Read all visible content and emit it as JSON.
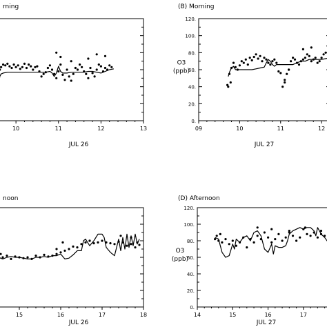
{
  "chart_data": [
    {
      "type": "scatter",
      "panel": "A",
      "title": "(A)  Morning",
      "title_visible": "rning",
      "xlabel": "JUL 26",
      "ylabel": "",
      "xlim": [
        9.3,
        13
      ],
      "ylim": [
        0,
        120
      ],
      "xticks": [
        "10",
        "11",
        "12",
        "13"
      ],
      "yticks": [],
      "series": [
        {
          "style": "dots",
          "x": [
            9.5,
            9.52,
            9.58,
            9.6,
            9.62,
            9.65,
            9.7,
            9.75,
            9.8,
            9.85,
            9.9,
            9.95,
            10.0,
            10.05,
            10.1,
            10.15,
            10.2,
            10.25,
            10.3,
            10.35,
            10.4,
            10.45,
            10.5,
            10.55,
            10.6,
            10.65,
            10.7,
            10.75,
            10.8,
            10.85,
            10.9,
            10.95,
            11.0,
            11.05,
            11.1,
            11.15,
            11.2,
            11.25,
            11.3,
            11.35,
            11.4,
            11.45,
            11.5,
            11.55,
            11.6,
            11.65,
            11.7,
            11.75,
            11.8,
            11.85,
            11.9,
            11.95,
            12.0,
            12.05,
            12.1,
            12.15,
            12.2,
            12.25,
            10.95,
            11.05,
            11.3,
            11.7,
            11.9,
            12.1
          ],
          "y": [
            31,
            30,
            45,
            55,
            60,
            63,
            66,
            65,
            67,
            64,
            62,
            66,
            63,
            65,
            61,
            63,
            67,
            62,
            66,
            64,
            60,
            63,
            64,
            58,
            52,
            55,
            57,
            62,
            65,
            60,
            55,
            50,
            58,
            66,
            54,
            48,
            60,
            52,
            47,
            55,
            62,
            60,
            66,
            63,
            58,
            55,
            50,
            62,
            56,
            52,
            60,
            66,
            64,
            58,
            62,
            60,
            65,
            63,
            80,
            75,
            70,
            73,
            78,
            76
          ]
        },
        {
          "style": "line",
          "x": [
            9.48,
            9.52,
            9.55,
            9.6,
            9.62,
            9.65,
            9.7,
            9.8,
            9.9,
            10.0,
            10.1,
            10.2,
            10.3,
            10.4,
            10.5,
            10.6,
            10.7,
            10.8,
            10.85,
            10.9,
            10.95,
            11.0,
            11.05,
            11.1,
            11.2,
            11.3,
            11.4,
            11.5,
            11.6,
            11.7,
            11.8,
            11.9,
            12.0,
            12.1,
            12.2,
            12.3
          ],
          "y": [
            34,
            40,
            38,
            44,
            52,
            55,
            56,
            57,
            57,
            57,
            57,
            57,
            57,
            57,
            57,
            57,
            57,
            58,
            56,
            52,
            56,
            64,
            58,
            56,
            56,
            57,
            57,
            57,
            57,
            58,
            58,
            57,
            56,
            58,
            60,
            61
          ]
        }
      ]
    },
    {
      "type": "scatter",
      "panel": "B",
      "title": "(B)  Morning",
      "xlabel": "JUL 27",
      "ylabel": "O3\n(ppb)",
      "ylabel_lines": [
        "O3",
        "(ppb)"
      ],
      "xlim": [
        9,
        12.2
      ],
      "ylim": [
        0,
        120
      ],
      "xticks": [
        "09",
        "10",
        "11",
        "12"
      ],
      "yticks": [
        "120.",
        "100.",
        "80.",
        "60.",
        "40.",
        "20.",
        "0."
      ],
      "series": [
        {
          "style": "dots",
          "x": [
            9.7,
            9.72,
            9.75,
            9.78,
            9.8,
            9.85,
            9.9,
            9.95,
            10.0,
            10.05,
            10.1,
            10.15,
            10.2,
            10.25,
            10.3,
            10.35,
            10.4,
            10.45,
            10.5,
            10.55,
            10.6,
            10.65,
            10.7,
            10.75,
            10.8,
            10.85,
            10.9,
            10.95,
            11.0,
            11.05,
            11.1,
            11.15,
            11.2,
            11.25,
            11.3,
            11.35,
            11.4,
            11.45,
            11.5,
            11.55,
            11.6,
            11.65,
            11.7,
            11.75,
            11.8,
            11.85,
            11.9,
            11.95,
            12.0,
            12.05,
            12.1,
            12.15,
            11.1,
            11.2,
            11.55,
            11.75
          ],
          "y": [
            42,
            40,
            55,
            45,
            62,
            68,
            63,
            60,
            65,
            70,
            68,
            72,
            66,
            74,
            71,
            75,
            78,
            73,
            76,
            70,
            74,
            72,
            68,
            66,
            70,
            72,
            68,
            58,
            56,
            40,
            45,
            55,
            60,
            70,
            74,
            72,
            68,
            66,
            70,
            72,
            74,
            78,
            76,
            70,
            72,
            74,
            68,
            70,
            74,
            78,
            80,
            88,
            48,
            60,
            84,
            86
          ]
        },
        {
          "style": "line",
          "x": [
            9.72,
            9.76,
            9.8,
            9.85,
            9.9,
            10.0,
            10.1,
            10.2,
            10.3,
            10.4,
            10.5,
            10.6,
            10.65,
            10.7,
            10.75,
            10.8,
            10.85,
            10.9,
            11.0,
            11.1,
            11.2,
            11.3,
            11.4,
            11.5,
            11.6,
            11.7,
            11.8,
            11.9,
            12.0,
            12.1,
            12.2
          ],
          "y": [
            52,
            58,
            62,
            64,
            60,
            60,
            60,
            60,
            60,
            61,
            62,
            63,
            68,
            72,
            70,
            66,
            64,
            66,
            66,
            66,
            66,
            66,
            68,
            70,
            70,
            72,
            72,
            72,
            72,
            73,
            74
          ]
        }
      ]
    },
    {
      "type": "scatter",
      "panel": "C",
      "title": "(C)  Afternoon",
      "title_visible": "noon",
      "xlabel": "JUL 26",
      "ylabel": "",
      "xlim": [
        14.2,
        18
      ],
      "ylim": [
        0,
        120
      ],
      "xticks": [
        "15",
        "16",
        "17",
        "18"
      ],
      "yticks": [],
      "series": [
        {
          "style": "dots",
          "x": [
            14.3,
            14.35,
            14.4,
            14.45,
            14.5,
            14.55,
            14.6,
            14.7,
            14.8,
            14.9,
            15.0,
            15.1,
            15.2,
            15.3,
            15.4,
            15.5,
            15.6,
            15.7,
            15.8,
            15.9,
            16.0,
            16.1,
            16.2,
            16.3,
            16.4,
            16.5,
            16.6,
            16.7,
            16.8,
            16.9,
            17.0,
            17.1,
            17.2,
            17.3,
            17.4,
            17.5,
            17.6,
            17.7,
            17.8,
            17.85,
            17.9,
            14.4,
            15.9,
            16.05,
            16.7,
            17.45,
            17.7
          ],
          "y": [
            68,
            65,
            72,
            66,
            62,
            64,
            60,
            62,
            58,
            61,
            60,
            59,
            60,
            58,
            62,
            60,
            63,
            61,
            62,
            64,
            66,
            68,
            70,
            73,
            72,
            76,
            78,
            80,
            77,
            78,
            80,
            78,
            77,
            76,
            79,
            78,
            74,
            76,
            72,
            78,
            75,
            84,
            70,
            78,
            80,
            86,
            84
          ]
        },
        {
          "style": "line",
          "x": [
            14.3,
            14.4,
            14.5,
            14.6,
            14.7,
            14.8,
            14.9,
            15.0,
            15.1,
            15.2,
            15.3,
            15.4,
            15.5,
            15.6,
            15.7,
            15.8,
            15.9,
            16.0,
            16.1,
            16.2,
            16.3,
            16.4,
            16.5,
            16.55,
            16.6,
            16.7,
            16.8,
            16.9,
            17.0,
            17.05,
            17.1,
            17.2,
            17.3,
            17.35,
            17.4,
            17.45,
            17.5,
            17.55,
            17.6,
            17.65,
            17.7,
            17.75,
            17.8,
            17.85,
            17.9
          ],
          "y": [
            68,
            64,
            60,
            58,
            60,
            61,
            60,
            60,
            59,
            58,
            58,
            60,
            60,
            61,
            60,
            62,
            62,
            64,
            58,
            59,
            63,
            68,
            68,
            80,
            82,
            74,
            80,
            88,
            88,
            84,
            72,
            66,
            62,
            72,
            82,
            68,
            84,
            70,
            88,
            72,
            86,
            74,
            88,
            76,
            82
          ]
        }
      ]
    },
    {
      "type": "scatter",
      "panel": "D",
      "title": "(D)  Afternoon",
      "xlabel": "JUL 27",
      "ylabel": "O3\n(ppb)",
      "ylabel_lines": [
        "O3",
        "(ppb)"
      ],
      "xlim": [
        14,
        17.9
      ],
      "ylim": [
        0,
        120
      ],
      "xticks": [
        "14",
        "15",
        "16",
        "17"
      ],
      "yticks": [
        "120.",
        "100.",
        "80.",
        "60.",
        "40.",
        "20.",
        "0."
      ],
      "series": [
        {
          "style": "dots",
          "x": [
            14.5,
            14.55,
            14.6,
            14.65,
            14.7,
            14.8,
            14.9,
            15.0,
            15.1,
            15.2,
            15.3,
            15.4,
            15.5,
            15.6,
            15.7,
            15.8,
            15.9,
            16.0,
            16.1,
            16.2,
            16.3,
            16.4,
            16.5,
            16.6,
            16.7,
            16.8,
            16.9,
            17.0,
            17.1,
            17.2,
            17.3,
            17.4,
            17.5,
            17.6,
            17.7,
            17.8,
            17.85,
            15.7,
            16.1,
            16.6,
            17.05,
            17.5
          ],
          "y": [
            82,
            86,
            80,
            88,
            78,
            82,
            76,
            80,
            74,
            78,
            84,
            72,
            82,
            78,
            86,
            82,
            90,
            84,
            78,
            82,
            88,
            80,
            84,
            92,
            86,
            80,
            84,
            94,
            88,
            86,
            90,
            84,
            92,
            86,
            88,
            84,
            82,
            96,
            94,
            90,
            96,
            88
          ]
        },
        {
          "style": "line",
          "x": [
            14.5,
            14.6,
            14.7,
            14.8,
            14.9,
            15.0,
            15.05,
            15.1,
            15.2,
            15.3,
            15.4,
            15.5,
            15.6,
            15.7,
            15.8,
            15.9,
            16.0,
            16.1,
            16.15,
            16.2,
            16.3,
            16.4,
            16.5,
            16.55,
            16.6,
            16.7,
            16.8,
            16.9,
            17.0,
            17.1,
            17.2,
            17.3,
            17.35,
            17.4,
            17.5,
            17.6,
            17.7,
            17.8,
            17.85
          ],
          "y": [
            84,
            82,
            66,
            60,
            62,
            76,
            70,
            82,
            78,
            84,
            86,
            80,
            90,
            92,
            86,
            70,
            66,
            76,
            64,
            74,
            72,
            72,
            74,
            80,
            88,
            92,
            94,
            96,
            94,
            96,
            96,
            92,
            86,
            96,
            88,
            84,
            78,
            86,
            80
          ]
        }
      ]
    }
  ]
}
